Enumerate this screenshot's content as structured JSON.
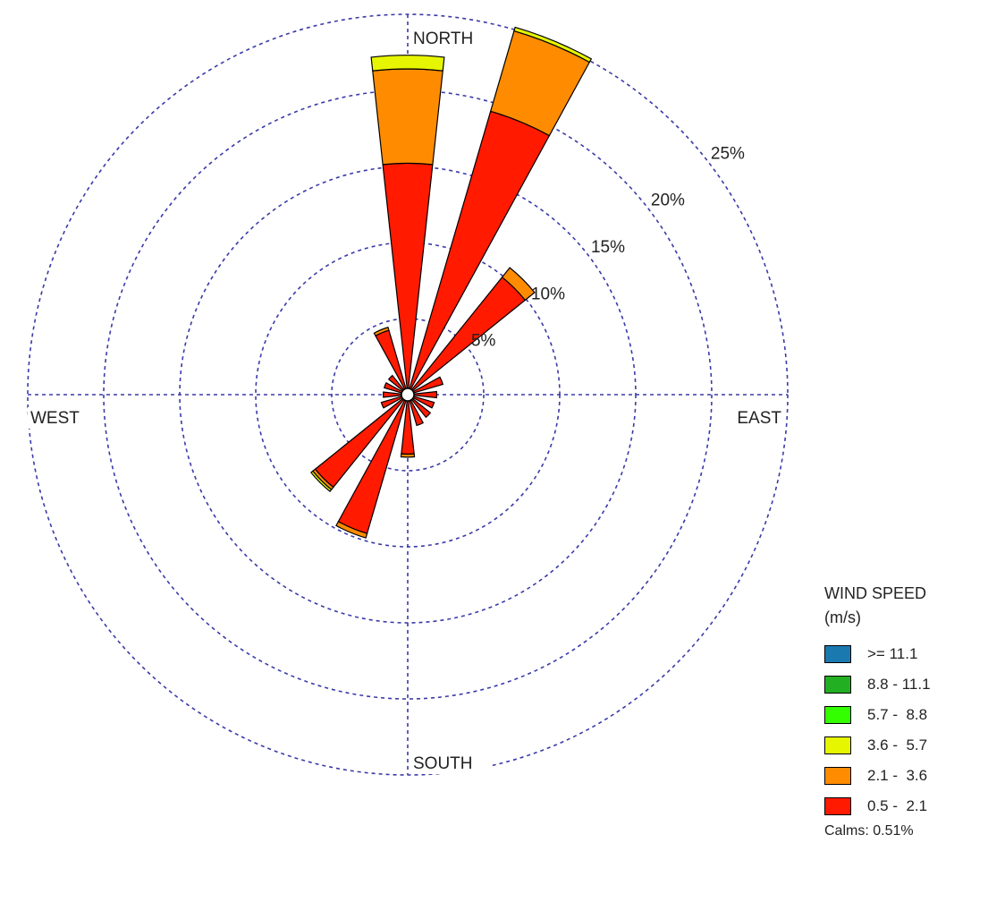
{
  "chart_data": {
    "type": "windrose",
    "directions": [
      "N",
      "NNE",
      "NE",
      "ENE",
      "E",
      "ESE",
      "SE",
      "SSE",
      "S",
      "SSW",
      "SW",
      "WSW",
      "W",
      "WNW",
      "NW",
      "NNW"
    ],
    "direction_labels": {
      "north": "NORTH",
      "east": "EAST",
      "south": "SOUTH",
      "west": "WEST"
    },
    "rings": [
      {
        "value": 5,
        "label": "5%"
      },
      {
        "value": 10,
        "label": "10%"
      },
      {
        "value": 15,
        "label": "15%"
      },
      {
        "value": 20,
        "label": "20%"
      },
      {
        "value": 25,
        "label": "25%"
      }
    ],
    "r_max": 25,
    "units": "percent frequency",
    "series": [
      {
        "name": "0.5 -  2.1",
        "color": "#ff1a00",
        "values": [
          14.8,
          19.0,
          9.5,
          2.0,
          1.5,
          1.4,
          1.5,
          1.7,
          3.5,
          9.1,
          7.4,
          1.4,
          1.2,
          1.2,
          1.2,
          4.0
        ]
      },
      {
        "name": "2.1 -  3.6",
        "color": "#ff8c00",
        "values": [
          6.2,
          5.5,
          0.8,
          0,
          0,
          0,
          0,
          0,
          0.2,
          0.3,
          0.2,
          0,
          0,
          0,
          0,
          0.2
        ]
      },
      {
        "name": "3.6 -  5.7",
        "color": "#e6f500",
        "values": [
          0.9,
          0.25,
          0,
          0,
          0,
          0,
          0,
          0,
          0,
          0,
          0.15,
          0,
          0,
          0,
          0,
          0
        ]
      },
      {
        "name": "5.7 -  8.8",
        "color": "#33ff00",
        "values": [
          0,
          0,
          0,
          0,
          0,
          0,
          0,
          0,
          0,
          0,
          0,
          0,
          0,
          0,
          0,
          0
        ]
      },
      {
        "name": "8.8 - 11.1",
        "color": "#22b022",
        "values": [
          0,
          0,
          0,
          0,
          0,
          0,
          0,
          0,
          0,
          0,
          0,
          0,
          0,
          0,
          0,
          0
        ]
      },
      {
        "name": ">= 11.1",
        "color": "#1a7ab0",
        "values": [
          0,
          0,
          0,
          0,
          0,
          0,
          0,
          0,
          0,
          0,
          0,
          0,
          0,
          0,
          0,
          0
        ]
      }
    ],
    "legend": {
      "title_line1": "WIND SPEED",
      "title_line2": "(m/s)",
      "position": "bottom-right"
    },
    "calms": "Calms: 0.51%"
  }
}
